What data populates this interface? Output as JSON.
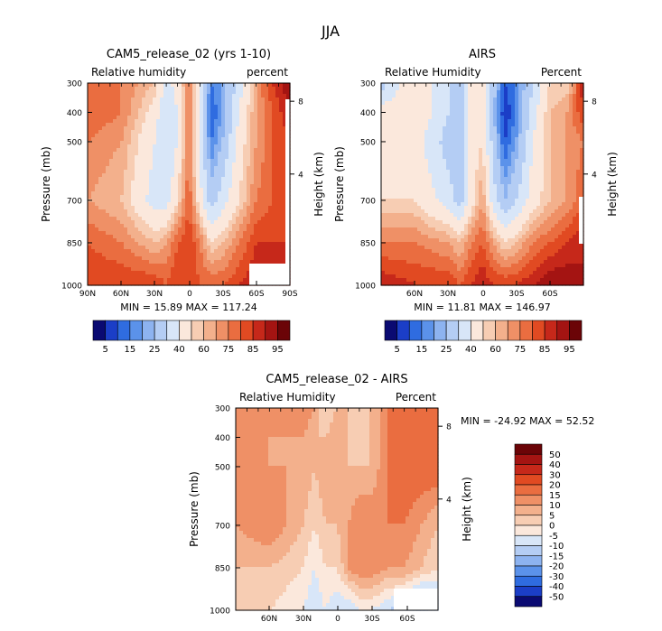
{
  "suptitle": "JJA",
  "colors": {
    "rh_scale": [
      "#0a0a72",
      "#1b3ec7",
      "#2f6ce0",
      "#5b92ea",
      "#8db3f0",
      "#b4cdf4",
      "#d8e6f8",
      "#fbe8dc",
      "#f7cdb3",
      "#f3b08c",
      "#ef9066",
      "#ea6d40",
      "#e14a22",
      "#c6281a",
      "#a41412",
      "#6b0407"
    ],
    "diff_scale": [
      "#0a0a72",
      "#1b3ec7",
      "#2f6ce0",
      "#5b92ea",
      "#8db3f0",
      "#b4cdf4",
      "#d8e6f8",
      "#fbe8dc",
      "#f7cdb3",
      "#f3b08c",
      "#ef9066",
      "#ea6d40",
      "#e14a22",
      "#c6281a",
      "#a41412",
      "#6b0407"
    ],
    "missing": "#ffffff"
  },
  "chart_data": [
    {
      "type": "heatmap",
      "title": "CAM5_release_02 (yrs 1-10)",
      "left_label": "Relative humidity",
      "right_label": "percent",
      "ylabel": "Pressure (mb)",
      "ylabel_right": "Height (km)",
      "y_ticks": [
        "300",
        "400",
        "500",
        "700",
        "850",
        "1000"
      ],
      "y_right_ticks": [
        "8",
        "4"
      ],
      "x_ticks": [
        "90N",
        "60N",
        "30N",
        "0",
        "30S",
        "60S",
        "90S"
      ],
      "stats": "MIN =   15.89   MAX =  117.24",
      "colorbar_labels": [
        "5",
        "15",
        "25",
        "40",
        "60",
        "75",
        "85",
        "95"
      ],
      "lat": [
        90,
        60,
        30,
        20,
        10,
        0,
        -10,
        -20,
        -30,
        -45,
        -60,
        -75,
        -90
      ],
      "levels": [
        300,
        400,
        500,
        700,
        850,
        1000
      ],
      "values": [
        [
          80,
          75,
          65,
          45,
          55,
          75,
          50,
          20,
          25,
          45,
          70,
          85,
          95
        ],
        [
          80,
          75,
          55,
          40,
          50,
          75,
          45,
          15,
          25,
          50,
          70,
          80,
          90
        ],
        [
          75,
          70,
          50,
          40,
          50,
          75,
          45,
          20,
          30,
          55,
          70,
          80,
          85
        ],
        [
          70,
          65,
          45,
          45,
          60,
          80,
          55,
          35,
          45,
          60,
          75,
          80,
          85
        ],
        [
          80,
          75,
          65,
          70,
          80,
          85,
          75,
          60,
          65,
          75,
          85,
          85,
          85
        ],
        [
          85,
          85,
          85,
          80,
          85,
          85,
          80,
          80,
          80,
          85,
          90,
          90,
          90
        ]
      ]
    },
    {
      "type": "heatmap",
      "title": "AIRS",
      "left_label": "Relative Humidity",
      "right_label": "Percent",
      "ylabel": "Pressure (mb)",
      "ylabel_right": "Height (km)",
      "y_ticks": [
        "300",
        "400",
        "500",
        "700",
        "850",
        "1000"
      ],
      "y_right_ticks": [
        "8",
        "4"
      ],
      "x_ticks": [
        "60N",
        "30N",
        "0",
        "30S",
        "60S"
      ],
      "stats": "MIN =   11.81   MAX =  146.97",
      "colorbar_labels": [
        "5",
        "15",
        "25",
        "40",
        "60",
        "75",
        "85",
        "95"
      ],
      "lat": [
        90,
        60,
        30,
        20,
        10,
        0,
        -10,
        -20,
        -30,
        -45,
        -60,
        -75,
        -90
      ],
      "levels": [
        300,
        400,
        500,
        700,
        850,
        1000
      ],
      "values": [
        [
          35,
          60,
          40,
          30,
          60,
          60,
          35,
          15,
          20,
          40,
          60,
          60,
          90
        ],
        [
          55,
          60,
          40,
          30,
          55,
          60,
          30,
          10,
          20,
          45,
          65,
          70,
          85
        ],
        [
          60,
          55,
          35,
          30,
          55,
          60,
          35,
          15,
          25,
          50,
          65,
          70,
          75
        ],
        [
          60,
          60,
          45,
          35,
          55,
          70,
          45,
          30,
          40,
          55,
          65,
          70,
          80
        ],
        [
          75,
          75,
          70,
          65,
          75,
          80,
          70,
          60,
          65,
          75,
          80,
          85,
          90
        ],
        [
          90,
          85,
          85,
          80,
          85,
          90,
          85,
          85,
          85,
          90,
          95,
          95,
          90
        ]
      ]
    },
    {
      "type": "heatmap",
      "title": "CAM5_release_02 - AIRS",
      "left_label": "Relative Humidity",
      "right_label": "Percent",
      "ylabel": "Pressure (mb)",
      "ylabel_right": "Height (km)",
      "y_ticks": [
        "300",
        "400",
        "500",
        "700",
        "850",
        "1000"
      ],
      "y_right_ticks": [
        "8",
        "4"
      ],
      "x_ticks": [
        "60N",
        "30N",
        "0",
        "30S",
        "60S"
      ],
      "stats": "MIN =  -24.92   MAX =   52.52",
      "colorbar_labels": [
        "50",
        "40",
        "30",
        "20",
        "15",
        "10",
        "5",
        "0",
        "-5",
        "-10",
        "-15",
        "-20",
        "-30",
        "-40",
        "-50"
      ],
      "lat": [
        90,
        60,
        30,
        20,
        10,
        0,
        -10,
        -20,
        -30,
        -45,
        -60,
        -75,
        -90
      ],
      "levels": [
        300,
        400,
        500,
        700,
        850,
        1000
      ],
      "values": [
        [
          20,
          15,
          20,
          15,
          5,
          10,
          10,
          10,
          10,
          20,
          20,
          25,
          30
        ],
        [
          20,
          15,
          15,
          10,
          10,
          15,
          10,
          5,
          10,
          20,
          25,
          25,
          30
        ],
        [
          15,
          15,
          15,
          10,
          15,
          15,
          10,
          10,
          10,
          20,
          25,
          25,
          25
        ],
        [
          15,
          20,
          10,
          5,
          10,
          10,
          15,
          20,
          20,
          20,
          20,
          15,
          10
        ],
        [
          10,
          10,
          5,
          0,
          5,
          5,
          15,
          20,
          20,
          15,
          15,
          10,
          5
        ],
        [
          5,
          5,
          0,
          -5,
          0,
          -5,
          -5,
          0,
          0,
          -5,
          -10,
          -20,
          -10
        ]
      ]
    }
  ]
}
